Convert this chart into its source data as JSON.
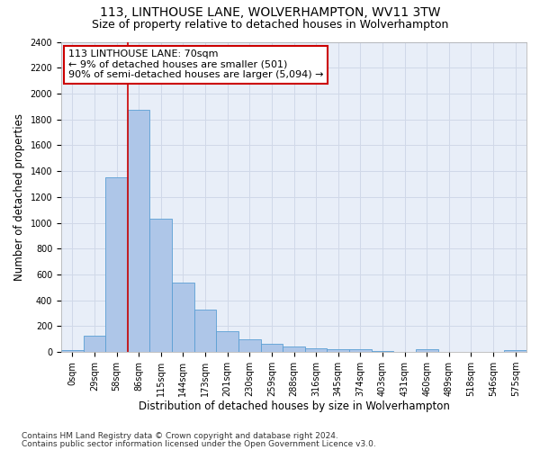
{
  "title1": "113, LINTHOUSE LANE, WOLVERHAMPTON, WV11 3TW",
  "title2": "Size of property relative to detached houses in Wolverhampton",
  "xlabel": "Distribution of detached houses by size in Wolverhampton",
  "ylabel": "Number of detached properties",
  "footer1": "Contains HM Land Registry data © Crown copyright and database right 2024.",
  "footer2": "Contains public sector information licensed under the Open Government Licence v3.0.",
  "bar_labels": [
    "0sqm",
    "29sqm",
    "58sqm",
    "86sqm",
    "115sqm",
    "144sqm",
    "173sqm",
    "201sqm",
    "230sqm",
    "259sqm",
    "288sqm",
    "316sqm",
    "345sqm",
    "374sqm",
    "403sqm",
    "431sqm",
    "460sqm",
    "489sqm",
    "518sqm",
    "546sqm",
    "575sqm"
  ],
  "bar_values": [
    15,
    125,
    1350,
    1875,
    1030,
    535,
    330,
    160,
    100,
    65,
    40,
    30,
    25,
    20,
    10,
    0,
    20,
    0,
    0,
    0,
    15
  ],
  "bar_color": "#aec6e8",
  "bar_edge_color": "#5a9fd4",
  "annotation_line1": "113 LINTHOUSE LANE: 70sqm",
  "annotation_line2": "← 9% of detached houses are smaller (501)",
  "annotation_line3": "90% of semi-detached houses are larger (5,094) →",
  "vline_x": 2.5,
  "vline_color": "#cc0000",
  "ylim": [
    0,
    2400
  ],
  "yticks": [
    0,
    200,
    400,
    600,
    800,
    1000,
    1200,
    1400,
    1600,
    1800,
    2000,
    2200,
    2400
  ],
  "grid_color": "#d0d8e8",
  "bg_color": "#e8eef8",
  "title1_fontsize": 10,
  "title2_fontsize": 9,
  "xlabel_fontsize": 8.5,
  "ylabel_fontsize": 8.5,
  "tick_fontsize": 7,
  "annotation_fontsize": 8,
  "footer_fontsize": 6.5
}
